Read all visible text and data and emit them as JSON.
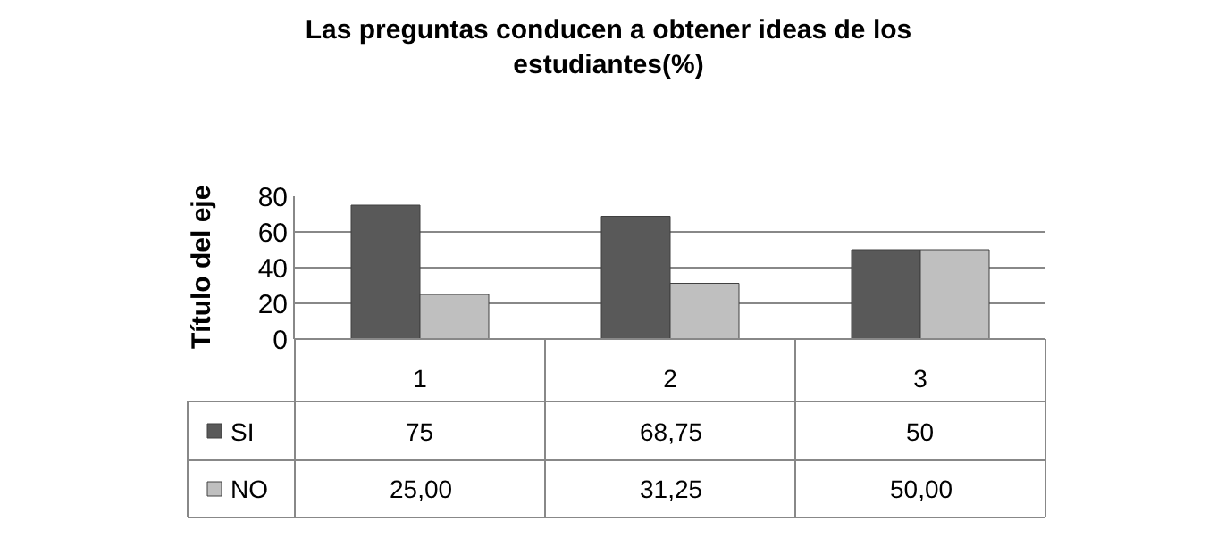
{
  "chart_data": {
    "type": "bar",
    "title": "Las preguntas conducen a obtener ideas de los estudiantes(%)",
    "ylabel": "Título del eje",
    "categories": [
      "1",
      "2",
      "3"
    ],
    "series": [
      {
        "name": "SI",
        "color": "#595959",
        "values": [
          75,
          68.75,
          50
        ],
        "value_labels": [
          "75",
          "68,75",
          "50"
        ]
      },
      {
        "name": "NO",
        "color": "#bfbfbf",
        "values": [
          25,
          31.25,
          50
        ],
        "value_labels": [
          "25,00",
          "31,25",
          "50,00"
        ]
      }
    ],
    "ylim": [
      0,
      80
    ],
    "yticks": [
      0,
      20,
      40,
      60,
      80
    ],
    "grid": "y",
    "legend": "bottom left"
  }
}
